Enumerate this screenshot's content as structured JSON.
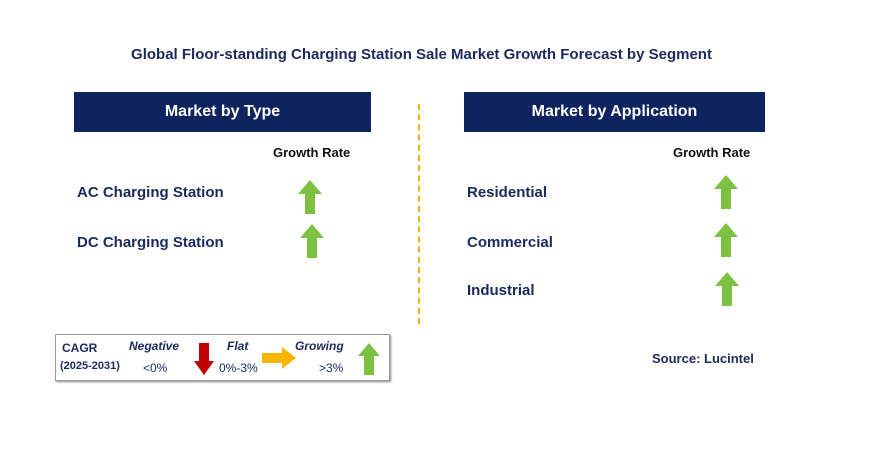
{
  "title": "Global Floor-standing Charging Station Sale Market Growth Forecast by Segment",
  "left_panel": {
    "header": "Market by Type",
    "growth_label": "Growth Rate",
    "rows": [
      {
        "label": "AC Charging Station",
        "trend": "growing"
      },
      {
        "label": "DC Charging Station",
        "trend": "growing"
      }
    ]
  },
  "right_panel": {
    "header": "Market by Application",
    "growth_label": "Growth Rate",
    "rows": [
      {
        "label": "Residential",
        "trend": "growing"
      },
      {
        "label": "Commercial",
        "trend": "growing"
      },
      {
        "label": "Industrial",
        "trend": "growing"
      }
    ]
  },
  "legend": {
    "cagr": "CAGR",
    "years": "(2025-2031)",
    "negative": {
      "title": "Negative",
      "value": "<0%"
    },
    "flat": {
      "title": "Flat",
      "value": "0%-3%"
    },
    "growing": {
      "title": "Growing",
      "value": ">3%"
    }
  },
  "source": "Source: Lucintel",
  "colors": {
    "header_bg": "#0e2360",
    "text": "#1b2a5e",
    "growing_arrow": "#7cc142",
    "negative_arrow": "#c00000",
    "flat_arrow": "#f7b500",
    "divider": "#f0b400"
  }
}
